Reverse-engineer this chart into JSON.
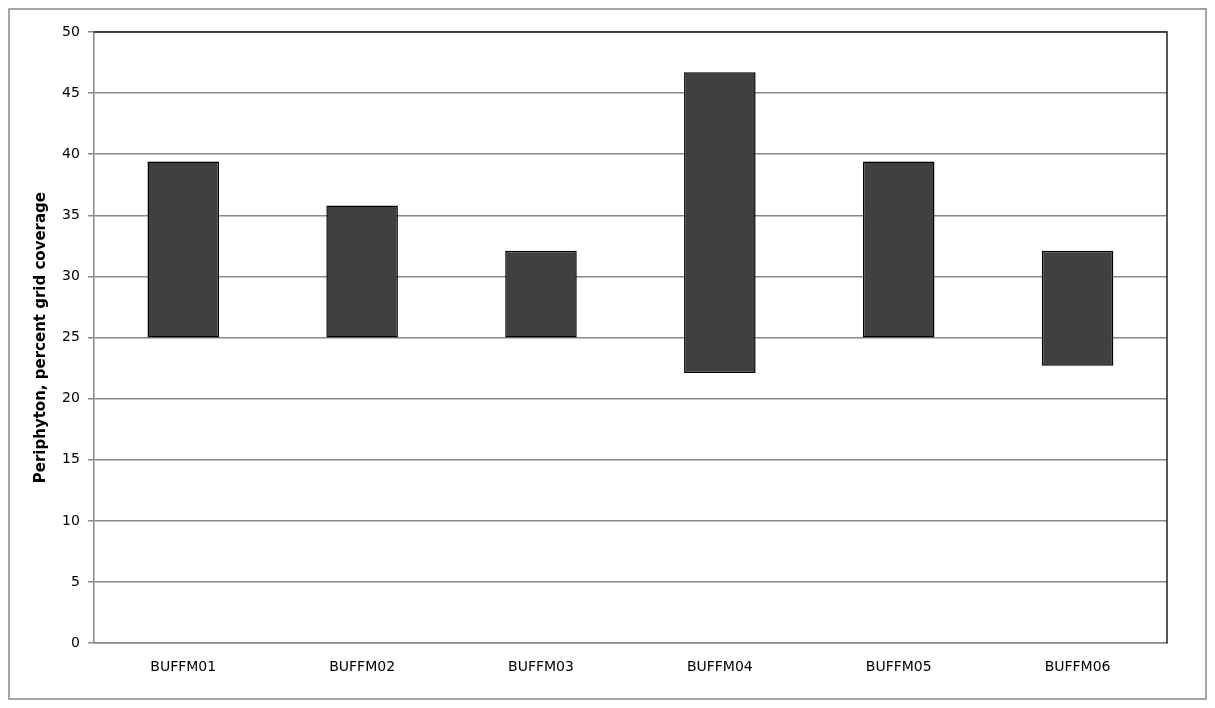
{
  "chart_data": {
    "type": "bar",
    "ylabel": "Periphyton, percent grid coverage",
    "categories": [
      "BUFFM01",
      "BUFFM02",
      "BUFFM03",
      "BUFFM04",
      "BUFFM05",
      "BUFFM06"
    ],
    "base": [
      25,
      25,
      25,
      22.1,
      25,
      22.7
    ],
    "values": [
      14.4,
      10.8,
      7.1,
      24.6,
      14.4,
      9.4
    ],
    "color": "#404040",
    "ylim": [
      0,
      50
    ],
    "yticks": [
      0,
      5,
      10,
      15,
      20,
      25,
      30,
      35,
      40,
      45,
      50
    ],
    "grid": "y",
    "legend": false
  }
}
